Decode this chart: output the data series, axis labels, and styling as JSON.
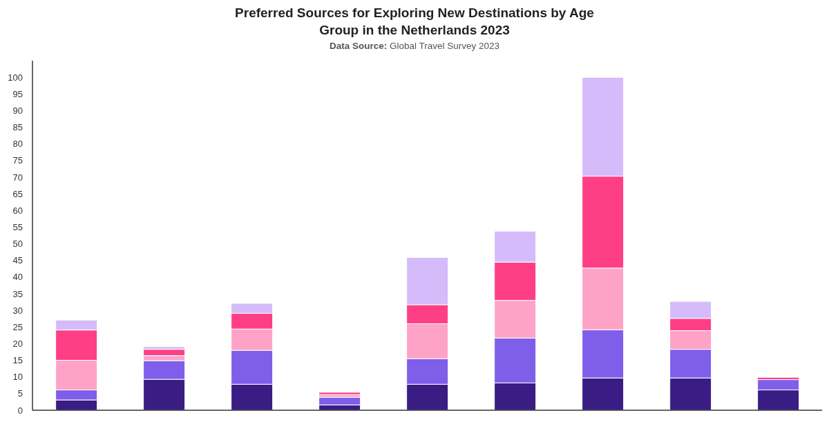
{
  "chart_data": {
    "type": "bar",
    "title": "Preferred Sources for Exploring New Destinations by Age Group in the Netherlands 2023",
    "subtitle": "Data Source: Global Travel Survey 2023",
    "categories": [
      null,
      null,
      null,
      null,
      null,
      null,
      null,
      null,
      null
    ],
    "stacked": true,
    "series": [
      {
        "color": "#391c84",
        "values": [
          3.1,
          9.3,
          7.8,
          1.6,
          7.8,
          8.2,
          9.7,
          9.7,
          6.1
        ]
      },
      {
        "color": "#7f5eea",
        "values": [
          3.0,
          5.6,
          10.2,
          2.3,
          7.7,
          13.5,
          14.5,
          8.6,
          3.1
        ]
      },
      {
        "color": "#fea3c5",
        "values": [
          8.9,
          1.5,
          6.4,
          0.8,
          10.5,
          11.3,
          18.5,
          5.6,
          0
        ]
      },
      {
        "color": "#fe3f86",
        "values": [
          9.1,
          1.9,
          4.7,
          0.7,
          5.7,
          11.5,
          27.6,
          3.7,
          0.7
        ]
      },
      {
        "color": "#d5bbfa",
        "values": [
          3.0,
          0.8,
          3.0,
          0,
          14.2,
          9.3,
          29.7,
          5.1,
          0
        ]
      }
    ],
    "ylim": [
      0,
      105
    ],
    "yticks": [
      0,
      5,
      10,
      15,
      20,
      25,
      30,
      35,
      40,
      45,
      50,
      55,
      60,
      65,
      70,
      75,
      80,
      85,
      90,
      95,
      100
    ]
  }
}
